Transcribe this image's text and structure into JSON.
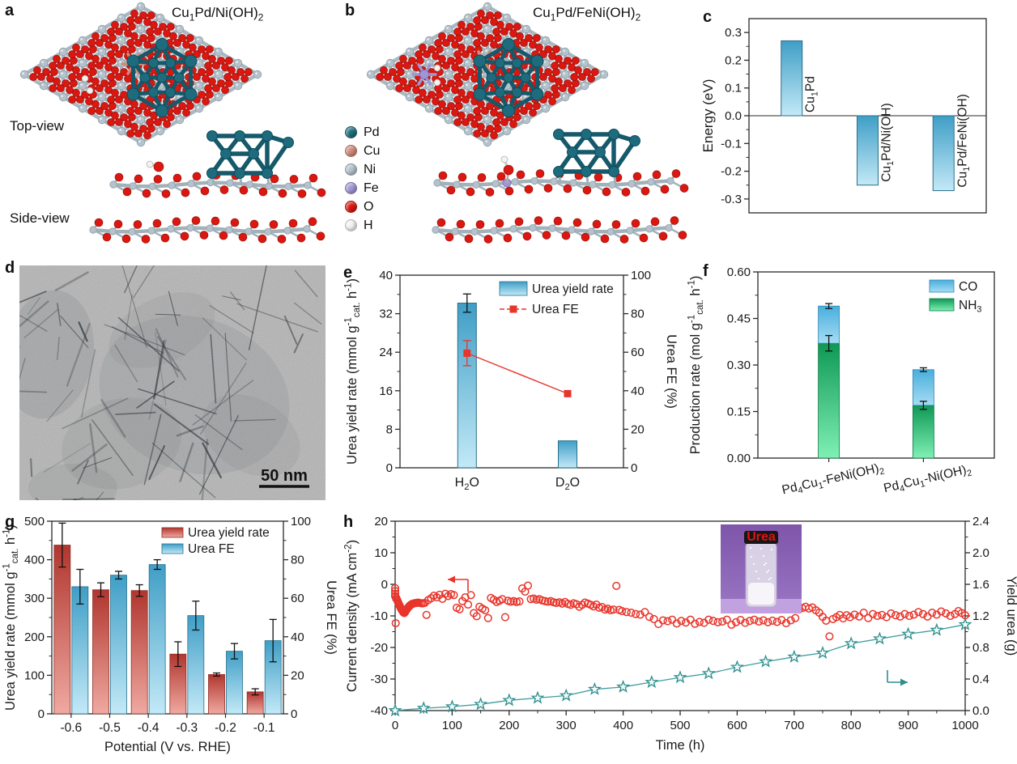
{
  "panel_labels": {
    "a": "a",
    "b": "b",
    "c": "c",
    "d": "d",
    "e": "e",
    "f": "f",
    "g": "g",
    "h": "h"
  },
  "panel_a": {
    "title": [
      {
        "t": "Cu"
      },
      {
        "t": "1",
        "s": "sub"
      },
      {
        "t": "Pd/Ni(OH)"
      },
      {
        "t": "2",
        "s": "sub"
      }
    ],
    "top_view_label": "Top-view",
    "side_view_label": "Side-view"
  },
  "panel_b": {
    "title": [
      {
        "t": "Cu"
      },
      {
        "t": "1",
        "s": "sub"
      },
      {
        "t": "Pd/FeNi(OH)"
      },
      {
        "t": "2",
        "s": "sub"
      }
    ]
  },
  "atom_legend": [
    {
      "label": "Pd",
      "color": "#1d6b7d"
    },
    {
      "label": "Cu",
      "color": "#d08a76"
    },
    {
      "label": "Ni",
      "color": "#b5c2cb"
    },
    {
      "label": "Fe",
      "color": "#9e97d6"
    },
    {
      "label": "O",
      "color": "#da1710"
    },
    {
      "label": "H",
      "color": "#f2f2ef"
    }
  ],
  "panel_d": {
    "scale_bar_label": "50 nm"
  },
  "colors": {
    "red": "#e8352b",
    "bar_blue_top": "#3f9ec6",
    "bar_blue_bottom": "#c3e9f7",
    "bar_red_top": "#b0362e",
    "bar_red_bottom": "#efa9a1",
    "green_top": "#0f9855",
    "green_bottom": "#7ff0b4",
    "co_blue_top": "#49aedd",
    "co_blue_bottom": "#a6ddf3",
    "teal_marker": "#2e8d8d",
    "teal_line": "#3f9d9d",
    "pd": "#1d6b7d",
    "cu": "#d08a76",
    "ni": "#b5c2cb",
    "fe": "#9e97d6",
    "o": "#da1710",
    "h": "#f2f2ef",
    "axis": "#2a2a2a"
  },
  "chart_data": {
    "c": {
      "type": "bar",
      "ylabel": "Energy (eV)",
      "ylim": [
        -0.35,
        0.35
      ],
      "yticks": [
        0.3,
        0.2,
        0.1,
        0.0,
        -0.1,
        -0.2,
        -0.3
      ],
      "ytick_labels": [
        "0.3",
        "0.2",
        "0.1",
        "0.0",
        "-0.1",
        "-0.2",
        "-0.3"
      ],
      "categories": [
        [
          {
            "t": "Cu"
          },
          {
            "t": "1",
            "s": "sub"
          },
          {
            "t": "Pd"
          }
        ],
        [
          {
            "t": "Cu"
          },
          {
            "t": "1",
            "s": "sub"
          },
          {
            "t": "Pd/Ni(OH)"
          }
        ],
        [
          {
            "t": "Cu"
          },
          {
            "t": "1",
            "s": "sub"
          },
          {
            "t": "Pd/FeNi(OH)"
          }
        ]
      ],
      "values": [
        0.27,
        -0.25,
        -0.27
      ]
    },
    "e": {
      "type": "bar+line",
      "categories": [
        [
          {
            "t": "H"
          },
          {
            "t": "2",
            "s": "sub"
          },
          {
            "t": "O"
          }
        ],
        [
          {
            "t": "D"
          },
          {
            "t": "2",
            "s": "sub"
          },
          {
            "t": "O"
          }
        ]
      ],
      "ylabel_left": [
        {
          "t": "Urea yield rate (mmol g"
        },
        {
          "t": "-1",
          "s": "sup"
        },
        {
          "t": "cat.",
          "s": "sub"
        },
        {
          "t": " h"
        },
        {
          "t": "-1",
          "s": "sup"
        },
        {
          "t": ")"
        }
      ],
      "ylabel_right": "Urea FE (%)",
      "ylim_left": [
        0,
        40
      ],
      "yticks_left": [
        0,
        8,
        16,
        24,
        32,
        40
      ],
      "ylim_right": [
        0,
        100
      ],
      "yticks_right": [
        0,
        20,
        40,
        60,
        80,
        100
      ],
      "yield_values": [
        34.2,
        5.6
      ],
      "yield_errors": [
        1.9,
        0
      ],
      "fe_values": [
        59.5,
        38.5
      ],
      "fe_errors": [
        6.5,
        0
      ],
      "legend": [
        "Urea yield rate",
        "Urea FE"
      ]
    },
    "f": {
      "type": "stacked-bar",
      "categories": [
        [
          {
            "t": "Pd"
          },
          {
            "t": "4",
            "s": "sub"
          },
          {
            "t": "Cu"
          },
          {
            "t": "1",
            "s": "sub"
          },
          {
            "t": "-FeNi(OH)"
          },
          {
            "t": "2",
            "s": "sub"
          }
        ],
        [
          {
            "t": "Pd"
          },
          {
            "t": "4",
            "s": "sub"
          },
          {
            "t": "Cu"
          },
          {
            "t": "1",
            "s": "sub"
          },
          {
            "t": "-Ni(OH)"
          },
          {
            "t": "2",
            "s": "sub"
          }
        ]
      ],
      "ylabel": [
        {
          "t": "Production rate (mol g"
        },
        {
          "t": "-1",
          "s": "sup"
        },
        {
          "t": "cat.",
          "s": "sub"
        },
        {
          "t": " h"
        },
        {
          "t": "-1",
          "s": "sup"
        },
        {
          "t": ")"
        }
      ],
      "ylim": [
        0,
        0.6
      ],
      "yticks": [
        0,
        0.15,
        0.3,
        0.45,
        0.6
      ],
      "ytick_labels": [
        "0.00",
        "0.15",
        "0.30",
        "0.45",
        "0.60"
      ],
      "series": [
        {
          "name": [
            {
              "t": "CO"
            }
          ],
          "values": [
            0.12,
            0.115
          ],
          "errors": [
            0.008,
            0.006
          ]
        },
        {
          "name": [
            {
              "t": "NH"
            },
            {
              "t": "3",
              "s": "sub"
            }
          ],
          "values": [
            0.37,
            0.17
          ],
          "errors": [
            0.025,
            0.013
          ]
        }
      ],
      "totals": [
        0.49,
        0.285
      ]
    },
    "g": {
      "type": "grouped-bar",
      "categories": [
        "-0.6",
        "-0.5",
        "-0.4",
        "-0.3",
        "-0.2",
        "-0.1"
      ],
      "xlabel": "Potential (V vs. RHE)",
      "ylabel_left": [
        {
          "t": "Urea yield rate (mmol g"
        },
        {
          "t": "-1",
          "s": "sup"
        },
        {
          "t": "cat.",
          "s": "sub"
        },
        {
          "t": " h"
        },
        {
          "t": "-1",
          "s": "sup"
        },
        {
          "t": ")"
        }
      ],
      "ylabel_right": "Urea FE (%)",
      "ylim_left": [
        0,
        500
      ],
      "yticks_left": [
        0,
        100,
        200,
        300,
        400,
        500
      ],
      "ylim_right": [
        0,
        100
      ],
      "yticks_right": [
        0,
        20,
        40,
        60,
        80,
        100
      ],
      "yield_values": [
        438,
        322,
        320,
        155,
        102,
        57
      ],
      "yield_errors": [
        57,
        18,
        15,
        32,
        4,
        8
      ],
      "fe_values": [
        66,
        72,
        77.5,
        51,
        32.5,
        38
      ],
      "fe_errors": [
        9,
        2,
        2.5,
        7.5,
        4,
        11
      ],
      "legend": [
        "Urea yield rate",
        "Urea FE"
      ]
    },
    "h": {
      "type": "scatter+line",
      "xlabel": "Time (h)",
      "xlim": [
        0,
        1000
      ],
      "xticks": [
        0,
        100,
        200,
        300,
        400,
        500,
        600,
        700,
        800,
        900,
        1000
      ],
      "ylabel_left": [
        {
          "t": "Current density (mA cm"
        },
        {
          "t": "-2",
          "s": "sup"
        },
        {
          "t": ")"
        }
      ],
      "ylim_left": [
        -40,
        20
      ],
      "yticks_left": [
        20,
        10,
        0,
        -10,
        -20,
        -30,
        -40
      ],
      "ylabel_right": "Yield urea (g)",
      "ylim_right": [
        0,
        2.4
      ],
      "yticks_right": [
        0.0,
        0.4,
        0.8,
        1.2,
        1.6,
        2.0,
        2.4
      ],
      "ytick_labels_right": [
        "0.0",
        "0.4",
        "0.8",
        "1.2",
        "1.6",
        "2.0",
        "2.4"
      ],
      "inset_label": "Urea",
      "series_names": [
        "Current density",
        "Yield urea"
      ],
      "current_density": [
        [
          0,
          -1.2
        ],
        [
          0,
          -2.1
        ],
        [
          0,
          -3.0
        ],
        [
          0,
          -3.8
        ],
        [
          1,
          -12.3
        ],
        [
          2,
          -4.3
        ],
        [
          3,
          -4.8
        ],
        [
          4,
          -5.2
        ],
        [
          5,
          -5.6
        ],
        [
          6,
          -6.0
        ],
        [
          7,
          -6.4
        ],
        [
          8,
          -6.8
        ],
        [
          9,
          -7.2
        ],
        [
          10,
          -7.6
        ],
        [
          11,
          -7.9
        ],
        [
          12,
          -8.2
        ],
        [
          13,
          -8.5
        ],
        [
          14,
          -8.8
        ],
        [
          15,
          -9.0
        ],
        [
          16,
          -9.1
        ],
        [
          17,
          -8.9
        ],
        [
          18,
          -8.6
        ],
        [
          19,
          -8.3
        ],
        [
          20,
          -8.0
        ],
        [
          21,
          -7.8
        ],
        [
          22,
          -7.5
        ],
        [
          23,
          -7.3
        ],
        [
          24,
          -7.1
        ],
        [
          25,
          -6.9
        ],
        [
          26,
          -6.7
        ],
        [
          27,
          -6.6
        ],
        [
          28,
          -6.4
        ],
        [
          29,
          -6.3
        ],
        [
          30,
          -6.2
        ],
        [
          32,
          -6.1
        ],
        [
          34,
          -6.0
        ],
        [
          36,
          -5.9
        ],
        [
          38,
          -5.9
        ],
        [
          40,
          -5.8
        ],
        [
          43,
          -5.9
        ],
        [
          46,
          -6.0
        ],
        [
          49,
          -6.0
        ],
        [
          52,
          -5.9
        ],
        [
          55,
          -9.7
        ],
        [
          58,
          -5.0
        ],
        [
          63,
          -4.4
        ],
        [
          68,
          -3.6
        ],
        [
          73,
          -4.1
        ],
        [
          78,
          -3.3
        ],
        [
          83,
          -4.6
        ],
        [
          88,
          -3.0
        ],
        [
          93,
          -3.7
        ],
        [
          98,
          -3.1
        ],
        [
          103,
          -3.4
        ],
        [
          108,
          -7.4
        ],
        [
          113,
          -7.9
        ],
        [
          118,
          -5.3
        ],
        [
          123,
          -4.1
        ],
        [
          128,
          -6.4
        ],
        [
          133,
          -3.4
        ],
        [
          138,
          -9.1
        ],
        [
          143,
          -10.1
        ],
        [
          148,
          -7.1
        ],
        [
          153,
          -7.7
        ],
        [
          158,
          -8.2
        ],
        [
          163,
          -10.7
        ],
        [
          168,
          -4.3
        ],
        [
          173,
          -4.9
        ],
        [
          178,
          -5.6
        ],
        [
          183,
          -5.2
        ],
        [
          188,
          -4.7
        ],
        [
          193,
          -10.4
        ],
        [
          198,
          -5.2
        ],
        [
          203,
          -5.5
        ],
        [
          208,
          -5.3
        ],
        [
          213,
          -5.6
        ],
        [
          218,
          -5.4
        ],
        [
          223,
          -1.3
        ],
        [
          228,
          -2.3
        ],
        [
          233,
          -0.4
        ],
        [
          238,
          -4.7
        ],
        [
          243,
          -4.5
        ],
        [
          248,
          -4.9
        ],
        [
          253,
          -4.7
        ],
        [
          258,
          -5.1
        ],
        [
          263,
          -5.3
        ],
        [
          268,
          -5.5
        ],
        [
          273,
          -5.3
        ],
        [
          278,
          -5.7
        ],
        [
          283,
          -5.9
        ],
        [
          288,
          -5.7
        ],
        [
          293,
          -6.1
        ],
        [
          298,
          -5.6
        ],
        [
          303,
          -6.2
        ],
        [
          308,
          -6.5
        ],
        [
          313,
          -6.0
        ],
        [
          318,
          -6.3
        ],
        [
          323,
          -7.1
        ],
        [
          328,
          -6.5
        ],
        [
          333,
          -5.8
        ],
        [
          338,
          -6.1
        ],
        [
          343,
          -6.5
        ],
        [
          348,
          -7.0
        ],
        [
          353,
          -6.4
        ],
        [
          358,
          -7.4
        ],
        [
          363,
          -7.2
        ],
        [
          368,
          -8.0
        ],
        [
          373,
          -7.7
        ],
        [
          378,
          -8.2
        ],
        [
          383,
          -8.0
        ],
        [
          388,
          -0.5
        ],
        [
          393,
          -8.1
        ],
        [
          398,
          -8.5
        ],
        [
          406,
          -8.8
        ],
        [
          414,
          -9.0
        ],
        [
          422,
          -9.4
        ],
        [
          430,
          -9.6
        ],
        [
          438,
          -8.8
        ],
        [
          446,
          -10.3
        ],
        [
          454,
          -11.0
        ],
        [
          462,
          -12.6
        ],
        [
          470,
          -11.4
        ],
        [
          478,
          -11.7
        ],
        [
          486,
          -11.2
        ],
        [
          494,
          -12.4
        ],
        [
          502,
          -11.6
        ],
        [
          510,
          -12.1
        ],
        [
          518,
          -11.2
        ],
        [
          526,
          -12.5
        ],
        [
          534,
          -11.9
        ],
        [
          542,
          -12.2
        ],
        [
          550,
          -11.2
        ],
        [
          558,
          -11.6
        ],
        [
          566,
          -12.0
        ],
        [
          574,
          -11.8
        ],
        [
          582,
          -11.2
        ],
        [
          590,
          -12.8
        ],
        [
          598,
          -12.0
        ],
        [
          606,
          -11.3
        ],
        [
          614,
          -12.2
        ],
        [
          622,
          -11.6
        ],
        [
          630,
          -11.2
        ],
        [
          638,
          -11.8
        ],
        [
          646,
          -11.4
        ],
        [
          654,
          -12.0
        ],
        [
          662,
          -11.5
        ],
        [
          670,
          -11.9
        ],
        [
          678,
          -11.3
        ],
        [
          686,
          -12.3
        ],
        [
          694,
          -11.4
        ],
        [
          702,
          -10.7
        ],
        [
          708,
          -8.0
        ],
        [
          714,
          -7.5
        ],
        [
          720,
          -7.1
        ],
        [
          726,
          -7.7
        ],
        [
          732,
          -7.3
        ],
        [
          738,
          -8.2
        ],
        [
          744,
          -9.0
        ],
        [
          750,
          -10.3
        ],
        [
          756,
          -11.5
        ],
        [
          762,
          -16.5
        ],
        [
          768,
          -11.0
        ],
        [
          774,
          -10.4
        ],
        [
          780,
          -9.7
        ],
        [
          786,
          -10.8
        ],
        [
          792,
          -9.8
        ],
        [
          798,
          -10.4
        ],
        [
          806,
          -9.6
        ],
        [
          814,
          -10.2
        ],
        [
          822,
          -9.0
        ],
        [
          830,
          -10.7
        ],
        [
          838,
          -9.4
        ],
        [
          846,
          -10.0
        ],
        [
          854,
          -9.7
        ],
        [
          862,
          -10.4
        ],
        [
          870,
          -9.2
        ],
        [
          878,
          -9.8
        ],
        [
          886,
          -10.2
        ],
        [
          894,
          -9.4
        ],
        [
          902,
          -10.0
        ],
        [
          910,
          -9.6
        ],
        [
          918,
          -8.8
        ],
        [
          926,
          -9.4
        ],
        [
          934,
          -10.2
        ],
        [
          942,
          -9.0
        ],
        [
          950,
          -9.6
        ],
        [
          958,
          -8.6
        ],
        [
          966,
          -9.2
        ],
        [
          974,
          -10.0
        ],
        [
          982,
          -9.4
        ],
        [
          988,
          -8.5
        ],
        [
          994,
          -9.1
        ],
        [
          1000,
          -9.8
        ]
      ],
      "urea_yield": [
        [
          0,
          0.0
        ],
        [
          50,
          0.03
        ],
        [
          100,
          0.05
        ],
        [
          150,
          0.08
        ],
        [
          200,
          0.13
        ],
        [
          250,
          0.16
        ],
        [
          300,
          0.19
        ],
        [
          350,
          0.27
        ],
        [
          400,
          0.3
        ],
        [
          450,
          0.36
        ],
        [
          500,
          0.42
        ],
        [
          550,
          0.47
        ],
        [
          600,
          0.55
        ],
        [
          650,
          0.62
        ],
        [
          700,
          0.68
        ],
        [
          750,
          0.73
        ],
        [
          800,
          0.85
        ],
        [
          850,
          0.91
        ],
        [
          900,
          0.97
        ],
        [
          950,
          1.02
        ],
        [
          1000,
          1.09
        ]
      ]
    }
  }
}
